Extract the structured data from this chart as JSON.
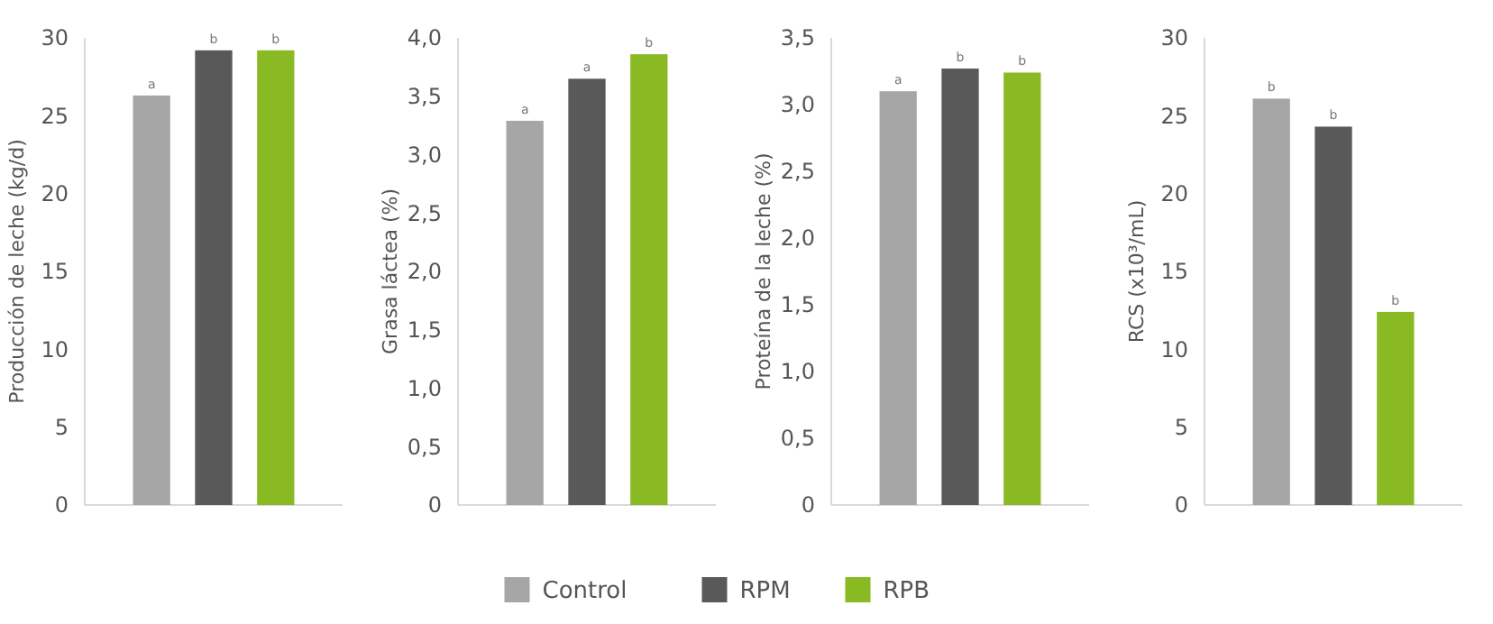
{
  "chart_data": [
    {
      "type": "bar",
      "ylabel": "Producción de leche (kg/d)",
      "categories": [
        null
      ],
      "ylim": [
        0,
        30
      ],
      "yticks": [
        0,
        5,
        10,
        15,
        20,
        25,
        30
      ],
      "legend": "bottom",
      "series": [
        {
          "name": "Control",
          "color": "#a6a6a6",
          "values": [
            26.3
          ],
          "value_labels": [
            "a"
          ]
        },
        {
          "name": "RPM",
          "color": "#595959",
          "values": [
            29.2
          ],
          "value_labels": [
            "b"
          ]
        },
        {
          "name": "RPB",
          "color": "#8aba23",
          "values": [
            29.2
          ],
          "value_labels": [
            "b"
          ]
        }
      ]
    },
    {
      "type": "bar",
      "ylabel": "Grasa láctea (%)",
      "categories": [
        null
      ],
      "ylim": [
        0,
        4
      ],
      "yticks": [
        {
          "value": 0,
          "label": "0"
        },
        {
          "value": 0.5,
          "label": "0,5"
        },
        {
          "value": 1,
          "label": "1,0"
        },
        {
          "value": 1.5,
          "label": "1,5"
        },
        {
          "value": 2,
          "label": "2,0"
        },
        {
          "value": 2.5,
          "label": "2,5"
        },
        {
          "value": 3,
          "label": "3,0"
        },
        {
          "value": 3.5,
          "label": "3,5"
        },
        {
          "value": 4,
          "label": "4,0"
        }
      ],
      "series": [
        {
          "color": "#a6a6a6",
          "values": [
            3.29
          ],
          "value_labels": [
            "a"
          ]
        },
        {
          "color": "#595959",
          "values": [
            3.65
          ],
          "value_labels": [
            "a"
          ]
        },
        {
          "color": "#8aba23",
          "values": [
            3.86
          ],
          "value_labels": [
            "b"
          ]
        }
      ]
    },
    {
      "type": "bar",
      "ylabel": "Proteína de la leche (%)",
      "categories": [
        null
      ],
      "ylim": [
        0,
        3.5
      ],
      "yticks": [
        {
          "value": 0,
          "label": "0"
        },
        {
          "value": 0.5,
          "label": "0,5"
        },
        {
          "value": 1,
          "label": "1,0"
        },
        {
          "value": 1.5,
          "label": "1,5"
        },
        {
          "value": 2,
          "label": "2,0"
        },
        {
          "value": 2.5,
          "label": "2,5"
        },
        {
          "value": 3,
          "label": "3,0"
        },
        {
          "value": 3.5,
          "label": "3,5"
        }
      ],
      "series": [
        {
          "color": "#a6a6a6",
          "values": [
            3.1
          ],
          "value_labels": [
            "a"
          ]
        },
        {
          "color": "#595959",
          "values": [
            3.27
          ],
          "value_labels": [
            "b"
          ]
        },
        {
          "color": "#8aba23",
          "values": [
            3.24
          ],
          "value_labels": [
            "b"
          ]
        }
      ]
    },
    {
      "type": "bar",
      "ylabel": "RCS (x10³/mL)",
      "categories": [
        null
      ],
      "ylim": [
        0,
        30
      ],
      "yticks": [
        0,
        5,
        10,
        15,
        20,
        25,
        30
      ],
      "series": [
        {
          "color": "#a6a6a6",
          "values": [
            26.1
          ],
          "value_labels": [
            "b"
          ]
        },
        {
          "color": "#595959",
          "values": [
            24.3
          ],
          "value_labels": [
            "b"
          ]
        },
        {
          "color": "#8aba23",
          "values": [
            12.4
          ],
          "value_labels": [
            "b"
          ]
        }
      ]
    }
  ]
}
